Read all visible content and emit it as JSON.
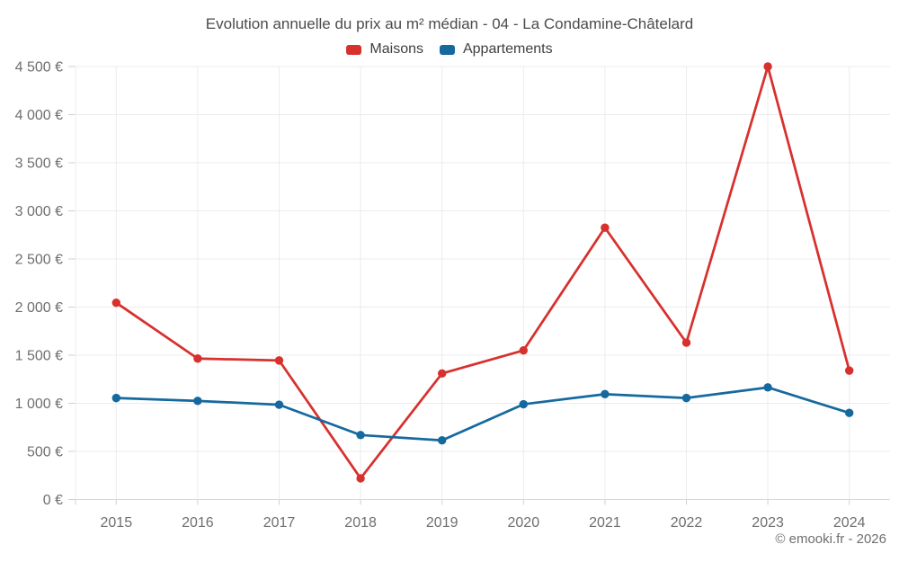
{
  "chart_data": {
    "type": "line",
    "title": "Evolution annuelle du prix au m² médian - 04 - La Condamine-Châtelard",
    "categories": [
      "2015",
      "2016",
      "2017",
      "2018",
      "2019",
      "2020",
      "2021",
      "2022",
      "2023",
      "2024"
    ],
    "series": [
      {
        "name": "Maisons",
        "color": "#d7312e",
        "values": [
          2045,
          1465,
          1445,
          220,
          1310,
          1550,
          2825,
          1630,
          4500,
          1340
        ]
      },
      {
        "name": "Appartements",
        "color": "#16699f",
        "values": [
          1055,
          1025,
          985,
          670,
          615,
          990,
          1095,
          1055,
          1165,
          900
        ]
      }
    ],
    "xlabel": "",
    "ylabel": "",
    "ylim": [
      0,
      4500
    ],
    "ytick_step": 500,
    "ytick_labels": [
      "0 €",
      "500 €",
      "1 000 €",
      "1 500 €",
      "2 000 €",
      "2 500 €",
      "3 000 €",
      "3 500 €",
      "4 000 €",
      "4 500 €"
    ],
    "grid": true,
    "legend_position": "top",
    "footer": "© emooki.fr - 2026",
    "colors": {
      "background": "#ffffff",
      "gridline": "#ececec",
      "axis_line": "#d8d8d8",
      "tick_mark": "#d0d0d0",
      "tick_text": "#6f6f6f",
      "title_text": "#4b4b4b",
      "legend_text": "#404040",
      "footer_text": "#6f6f6f"
    }
  }
}
